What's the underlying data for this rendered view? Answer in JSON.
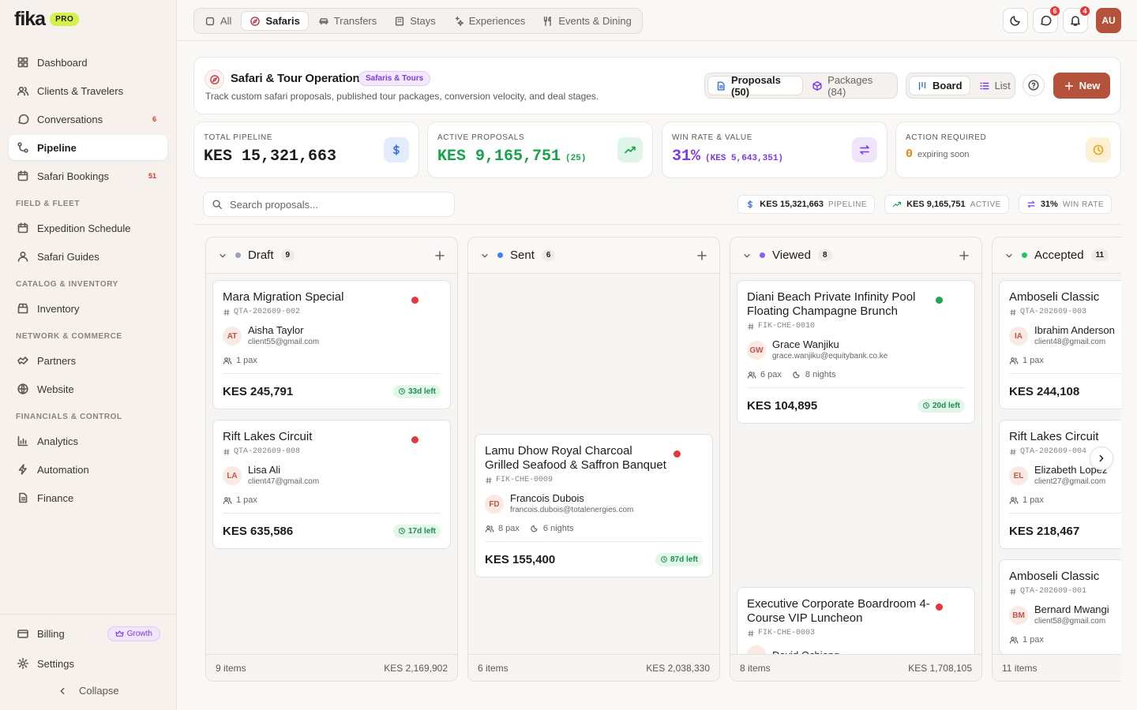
{
  "brand": {
    "name": "fika",
    "badge": "PRO"
  },
  "sidebar": {
    "groups": [
      {
        "items": [
          {
            "label": "Dashboard"
          },
          {
            "label": "Clients & Travelers"
          },
          {
            "label": "Conversations",
            "badge": 6
          },
          {
            "label": "Pipeline",
            "active": true
          },
          {
            "label": "Safari Bookings",
            "badge": 51
          }
        ]
      },
      {
        "title": "FIELD & FLEET",
        "items": [
          {
            "label": "Expedition Schedule"
          },
          {
            "label": "Safari Guides"
          }
        ]
      },
      {
        "title": "CATALOG & INVENTORY",
        "items": [
          {
            "label": "Inventory"
          }
        ]
      },
      {
        "title": "NETWORK & COMMERCE",
        "items": [
          {
            "label": "Partners"
          },
          {
            "label": "Website"
          }
        ]
      },
      {
        "title": "FINANCIALS & CONTROL",
        "items": [
          {
            "label": "Analytics"
          },
          {
            "label": "Automation"
          },
          {
            "label": "Finance"
          }
        ]
      }
    ],
    "billing": {
      "label": "Billing",
      "badge": "Growth"
    },
    "settings": "Settings",
    "collapse": "Collapse"
  },
  "tabs": [
    {
      "label": "All"
    },
    {
      "label": "Safaris",
      "active": true
    },
    {
      "label": "Transfers"
    },
    {
      "label": "Stays"
    },
    {
      "label": "Experiences"
    },
    {
      "label": "Events & Dining"
    }
  ],
  "header": {
    "messages": 6,
    "notifications": 4,
    "avatar": "AU"
  },
  "page": {
    "title": "Safari & Tour Operations",
    "tag": "Safaris & Tours",
    "subtitle": "Track custom safari proposals, published tour packages, conversion velocity, and deal stages.",
    "views": [
      {
        "label": "Proposals (50)",
        "active": true
      },
      {
        "label": "Packages (84)"
      }
    ],
    "modes": [
      {
        "label": "Board",
        "active": true
      },
      {
        "label": "List"
      }
    ],
    "new": "New"
  },
  "stats": [
    {
      "label": "TOTAL PIPELINE",
      "value": "KES 15,321,663",
      "color": "#1f1d1b"
    },
    {
      "label": "ACTIVE PROPOSALS",
      "value": "KES 9,165,751",
      "extra": "(25)",
      "color": "#16a34a"
    },
    {
      "label": "WIN RATE & VALUE",
      "value": "31%",
      "extra": "(KES 5,643,351)",
      "color": "#7c3aed"
    },
    {
      "label": "ACTION REQUIRED",
      "value": "0",
      "extra": "expiring soon",
      "color": "#e8870e"
    }
  ],
  "search": {
    "placeholder": "Search proposals..."
  },
  "summary": [
    {
      "value": "KES 15,321,663",
      "label": "PIPELINE"
    },
    {
      "value": "KES 9,165,751",
      "label": "ACTIVE"
    },
    {
      "value": "31%",
      "label": "WIN RATE"
    }
  ],
  "columns": [
    {
      "name": "Draft",
      "count": 9,
      "color": "#9ca3af",
      "items": "9 items",
      "total": "KES 2,169,902",
      "cards": [
        {
          "title": "Mara Migration Special",
          "code": "QTA-202609-002",
          "initials": "AT",
          "client": "Aisha Taylor",
          "email": "client55@gmail.com",
          "pax": "1 pax",
          "price": "KES 245,791",
          "left": "33d left",
          "status": "#e5383b"
        },
        {
          "title": "Rift Lakes Circuit",
          "code": "QTA-202609-008",
          "initials": "LA",
          "client": "Lisa Ali",
          "email": "client47@gmail.com",
          "pax": "1 pax",
          "price": "KES 635,586",
          "left": "17d left",
          "status": "#e5383b"
        }
      ]
    },
    {
      "name": "Sent",
      "count": 6,
      "color": "#3b82f6",
      "items": "6 items",
      "total": "KES 2,038,330",
      "cards": [
        {
          "title": "Lamu Dhow Royal Charcoal Grilled Seafood & Saffron Banquet",
          "code": "FIK-CHE-0009",
          "initials": "FD",
          "client": "Francois Dubois",
          "email": "francois.dubois@totalenergies.com",
          "pax": "8 pax",
          "nights": "6 nights",
          "price": "KES 155,400",
          "left": "87d left",
          "status": "#e5383b"
        }
      ]
    },
    {
      "name": "Viewed",
      "count": 8,
      "color": "#8b5cf6",
      "items": "8 items",
      "total": "KES 1,708,105",
      "cards": [
        {
          "title": "Diani Beach Private Infinity Pool Floating Champagne Brunch",
          "code": "FIK-CHE-0010",
          "initials": "GW",
          "client": "Grace Wanjiku",
          "email": "grace.wanjiku@equitybank.co.ke",
          "pax": "6 pax",
          "nights": "8 nights",
          "price": "KES 104,895",
          "left": "20d left",
          "status": "#22a559"
        },
        {
          "title": "Executive Corporate Boardroom 4-Course VIP Luncheon",
          "code": "FIK-CHE-0003",
          "client": "David Ochieng",
          "status": "#e5383b"
        }
      ]
    },
    {
      "name": "Accepted",
      "count": 11,
      "color": "#22c55e",
      "items": "11 items",
      "cards": [
        {
          "title": "Amboseli Classic",
          "code": "QTA-202609-003",
          "initials": "IA",
          "client": "Ibrahim Anderson",
          "email": "client48@gmail.com",
          "pax": "1 pax",
          "price": "KES 244,108"
        },
        {
          "title": "Rift Lakes Circuit",
          "code": "QTA-202609-004",
          "initials": "EL",
          "client": "Elizabeth Lopez",
          "email": "client27@gmail.com",
          "pax": "1 pax",
          "price": "KES 218,467"
        },
        {
          "title": "Amboseli Classic",
          "code": "QTA-202609-001",
          "initials": "BM",
          "client": "Bernard Mwangi",
          "email": "client58@gmail.com",
          "pax": "1 pax"
        }
      ]
    }
  ]
}
